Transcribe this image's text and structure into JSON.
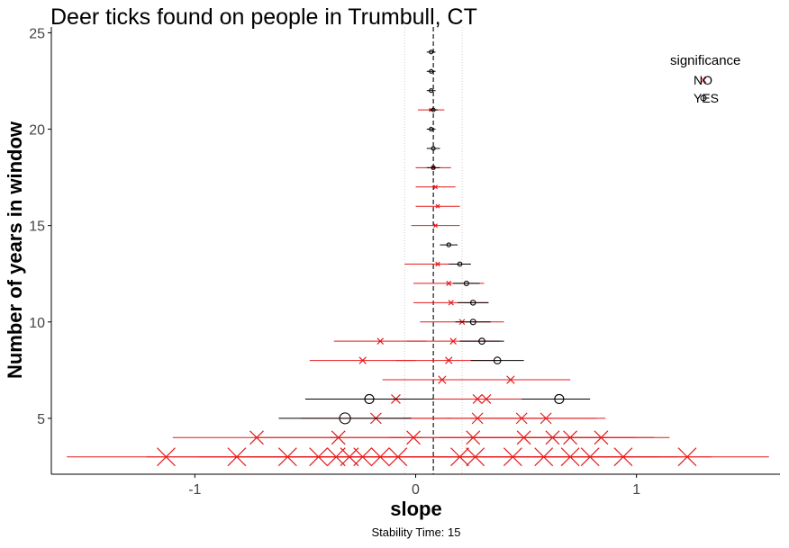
{
  "chart_data": {
    "type": "scatter",
    "title": "Deer ticks found on people in Trumbull, CT",
    "xlabel": "slope",
    "ylabel": "Number of years in window",
    "caption": "Stability Time: 15",
    "xlim": [
      -1.65,
      1.65
    ],
    "ylim": [
      2.1,
      25.3
    ],
    "x_ticks": [
      -1,
      0,
      1
    ],
    "x_tick_labels": [
      "-1",
      "0",
      "1"
    ],
    "y_ticks": [
      5,
      10,
      15,
      20,
      25
    ],
    "y_tick_labels": [
      "5",
      "10",
      "15",
      "20",
      "25"
    ],
    "grid": false,
    "reference_lines": {
      "mean_slope": 0.08,
      "lower_band": -0.05,
      "upper_band": 0.21
    },
    "legend": {
      "title": "significance",
      "position": "top-right",
      "entries": [
        {
          "label": "NO",
          "marker": "x",
          "color": "#e41a1c"
        },
        {
          "label": "YES",
          "marker": "circle",
          "color": "#000000"
        }
      ]
    },
    "colors": {
      "NO": "#e41a1c",
      "YES": "#000000"
    },
    "series": [
      {
        "name": "NO",
        "marker": "x",
        "points": [
          {
            "window": 3,
            "slope": -1.13,
            "lo": -1.58,
            "hi": -0.68
          },
          {
            "window": 3,
            "slope": -0.81,
            "lo": -1.22,
            "hi": -0.4
          },
          {
            "window": 3,
            "slope": -0.58,
            "lo": -0.98,
            "hi": -0.18
          },
          {
            "window": 3,
            "slope": -0.44,
            "lo": -0.84,
            "hi": -0.04
          },
          {
            "window": 3,
            "slope": -0.36,
            "lo": -0.76,
            "hi": 0.04
          },
          {
            "window": 3,
            "slope": -0.3,
            "lo": -0.7,
            "hi": 0.1
          },
          {
            "window": 3,
            "slope": -0.24,
            "lo": -0.64,
            "hi": 0.16
          },
          {
            "window": 3,
            "slope": -0.16,
            "lo": -0.56,
            "hi": 0.24
          },
          {
            "window": 3,
            "slope": -0.08,
            "lo": -0.48,
            "hi": 0.32
          },
          {
            "window": 3,
            "slope": 0.2,
            "lo": -0.2,
            "hi": 0.6
          },
          {
            "window": 3,
            "slope": 0.27,
            "lo": -0.13,
            "hi": 0.67
          },
          {
            "window": 3,
            "slope": 0.44,
            "lo": 0.04,
            "hi": 0.84
          },
          {
            "window": 3,
            "slope": 0.58,
            "lo": 0.18,
            "hi": 0.98
          },
          {
            "window": 3,
            "slope": 0.7,
            "lo": 0.3,
            "hi": 1.1
          },
          {
            "window": 3,
            "slope": 0.79,
            "lo": 0.39,
            "hi": 1.19
          },
          {
            "window": 3,
            "slope": 0.94,
            "lo": 0.54,
            "hi": 1.34
          },
          {
            "window": 3,
            "slope": 1.23,
            "lo": 0.83,
            "hi": 1.6
          },
          {
            "window": 4,
            "slope": -0.72,
            "lo": -1.1,
            "hi": -0.34
          },
          {
            "window": 4,
            "slope": -0.35,
            "lo": -0.73,
            "hi": 0.03
          },
          {
            "window": 4,
            "slope": -0.01,
            "lo": -0.39,
            "hi": 0.37
          },
          {
            "window": 4,
            "slope": 0.26,
            "lo": -0.12,
            "hi": 0.64
          },
          {
            "window": 4,
            "slope": 0.49,
            "lo": 0.11,
            "hi": 0.87
          },
          {
            "window": 4,
            "slope": 0.62,
            "lo": 0.24,
            "hi": 1.0
          },
          {
            "window": 4,
            "slope": 0.7,
            "lo": 0.32,
            "hi": 1.08
          },
          {
            "window": 4,
            "slope": 0.84,
            "lo": 0.46,
            "hi": 1.15
          },
          {
            "window": 5,
            "slope": -0.18,
            "lo": -0.52,
            "hi": 0.16
          },
          {
            "window": 5,
            "slope": 0.28,
            "lo": -0.06,
            "hi": 0.62
          },
          {
            "window": 5,
            "slope": 0.48,
            "lo": 0.14,
            "hi": 0.82
          },
          {
            "window": 5,
            "slope": 0.59,
            "lo": 0.25,
            "hi": 0.86
          },
          {
            "window": 6,
            "slope": -0.09,
            "lo": -0.39,
            "hi": 0.21
          },
          {
            "window": 6,
            "slope": 0.28,
            "lo": -0.02,
            "hi": 0.58
          },
          {
            "window": 6,
            "slope": 0.32,
            "lo": 0.02,
            "hi": 0.62
          },
          {
            "window": 7,
            "slope": 0.12,
            "lo": -0.15,
            "hi": 0.39
          },
          {
            "window": 7,
            "slope": 0.43,
            "lo": 0.16,
            "hi": 0.7
          },
          {
            "window": 8,
            "slope": -0.24,
            "lo": -0.48,
            "hi": 0.0
          },
          {
            "window": 8,
            "slope": 0.15,
            "lo": -0.09,
            "hi": 0.39
          },
          {
            "window": 9,
            "slope": -0.16,
            "lo": -0.37,
            "hi": 0.05
          },
          {
            "window": 9,
            "slope": 0.17,
            "lo": -0.04,
            "hi": 0.38
          },
          {
            "window": 10,
            "slope": 0.21,
            "lo": 0.02,
            "hi": 0.4
          },
          {
            "window": 11,
            "slope": 0.16,
            "lo": -0.01,
            "hi": 0.33
          },
          {
            "window": 12,
            "slope": 0.15,
            "lo": -0.01,
            "hi": 0.31
          },
          {
            "window": 13,
            "slope": 0.1,
            "lo": -0.05,
            "hi": 0.25
          },
          {
            "window": 15,
            "slope": 0.09,
            "lo": -0.02,
            "hi": 0.2
          },
          {
            "window": 16,
            "slope": 0.1,
            "lo": 0.0,
            "hi": 0.2
          },
          {
            "window": 17,
            "slope": 0.09,
            "lo": 0.0,
            "hi": 0.18
          },
          {
            "window": 18,
            "slope": 0.08,
            "lo": 0.0,
            "hi": 0.16
          },
          {
            "window": 21,
            "slope": 0.07,
            "lo": 0.01,
            "hi": 0.13
          }
        ]
      },
      {
        "name": "YES",
        "marker": "circle",
        "points": [
          {
            "window": 5,
            "slope": -0.32,
            "lo": -0.62,
            "hi": -0.02
          },
          {
            "window": 6,
            "slope": -0.21,
            "lo": -0.5,
            "hi": 0.08
          },
          {
            "window": 6,
            "slope": 0.65,
            "lo": 0.48,
            "hi": 0.79
          },
          {
            "window": 8,
            "slope": 0.37,
            "lo": 0.25,
            "hi": 0.49
          },
          {
            "window": 9,
            "slope": 0.3,
            "lo": 0.2,
            "hi": 0.4
          },
          {
            "window": 10,
            "slope": 0.26,
            "lo": 0.18,
            "hi": 0.34
          },
          {
            "window": 11,
            "slope": 0.26,
            "lo": 0.19,
            "hi": 0.33
          },
          {
            "window": 12,
            "slope": 0.23,
            "lo": 0.17,
            "hi": 0.29
          },
          {
            "window": 13,
            "slope": 0.2,
            "lo": 0.15,
            "hi": 0.25
          },
          {
            "window": 14,
            "slope": 0.15,
            "lo": 0.11,
            "hi": 0.19
          },
          {
            "window": 18,
            "slope": 0.08,
            "lo": 0.05,
            "hi": 0.11
          },
          {
            "window": 19,
            "slope": 0.08,
            "lo": 0.05,
            "hi": 0.11
          },
          {
            "window": 20,
            "slope": 0.07,
            "lo": 0.05,
            "hi": 0.09
          },
          {
            "window": 21,
            "slope": 0.08,
            "lo": 0.06,
            "hi": 0.1
          },
          {
            "window": 22,
            "slope": 0.07,
            "lo": 0.05,
            "hi": 0.09
          },
          {
            "window": 23,
            "slope": 0.07,
            "lo": 0.05,
            "hi": 0.09
          },
          {
            "window": 24,
            "slope": 0.07,
            "lo": 0.05,
            "hi": 0.09
          }
        ]
      }
    ]
  }
}
